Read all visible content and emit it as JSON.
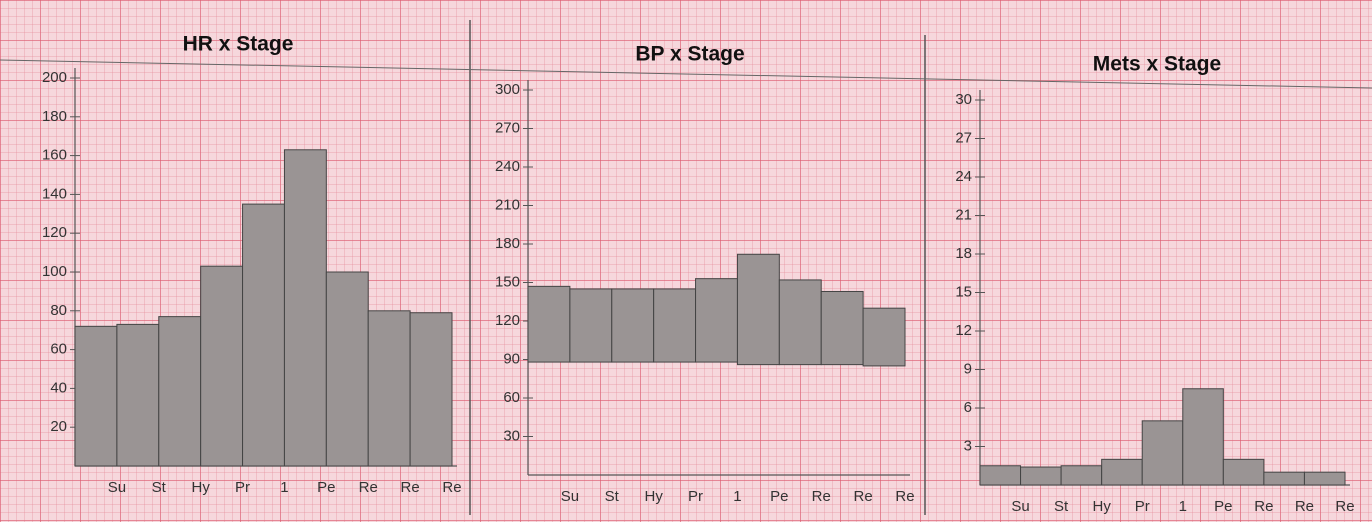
{
  "chart_data": [
    {
      "type": "bar",
      "title": "HR x Stage",
      "categories": [
        "Su",
        "St",
        "Hy",
        "Pr",
        "1",
        "Pe",
        "Re",
        "Re",
        "Re"
      ],
      "values": [
        72,
        73,
        77,
        103,
        135,
        163,
        100,
        80,
        79
      ],
      "color": "#9a9494",
      "ylim": [
        0,
        200
      ],
      "yticks": [
        20,
        40,
        60,
        80,
        100,
        120,
        140,
        160,
        180,
        200
      ]
    },
    {
      "type": "range-bar",
      "title": "BP x Stage",
      "categories": [
        "Su",
        "St",
        "Hy",
        "Pr",
        "1",
        "Pe",
        "Re",
        "Re",
        "Re"
      ],
      "values": [
        [
          88,
          147
        ],
        [
          88,
          145
        ],
        [
          88,
          145
        ],
        [
          88,
          145
        ],
        [
          88,
          153
        ],
        [
          86,
          172
        ],
        [
          86,
          152
        ],
        [
          86,
          143
        ],
        [
          85,
          130
        ]
      ],
      "color": "#9a9494",
      "ylim": [
        0,
        300
      ],
      "yticks": [
        30,
        60,
        90,
        120,
        150,
        180,
        210,
        240,
        270,
        300
      ]
    },
    {
      "type": "bar",
      "title": "Mets x Stage",
      "categories": [
        "Su",
        "St",
        "Hy",
        "Pr",
        "1",
        "Pe",
        "Re",
        "Re",
        "Re"
      ],
      "values": [
        1.5,
        1.4,
        1.5,
        2,
        5,
        7.5,
        2,
        1,
        1
      ],
      "color": "#9a9494",
      "ylim": [
        0,
        30
      ],
      "yticks": [
        3,
        6,
        9,
        12,
        15,
        18,
        21,
        24,
        27,
        30
      ]
    }
  ]
}
